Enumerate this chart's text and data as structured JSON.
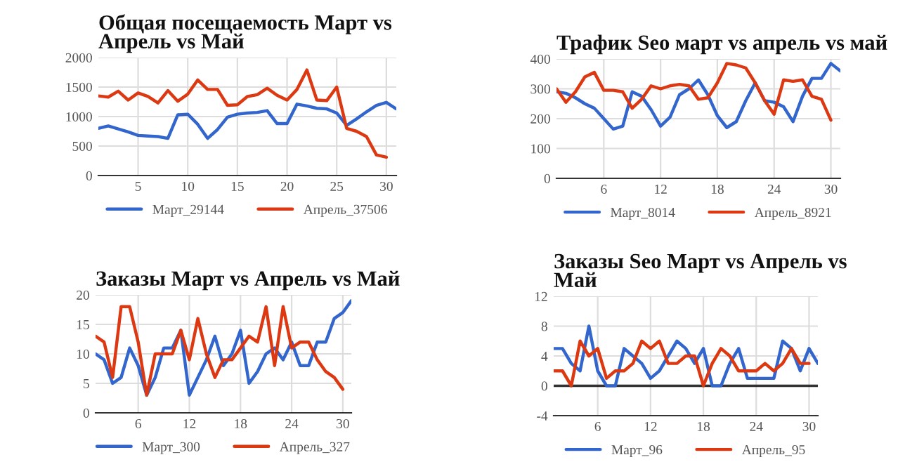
{
  "chart_data": [
    {
      "type": "line",
      "title": "Общая посещаемость Март vs\nАпрель vs Май",
      "x": [
        1,
        2,
        3,
        4,
        5,
        6,
        7,
        8,
        9,
        10,
        11,
        12,
        13,
        14,
        15,
        16,
        17,
        18,
        19,
        20,
        21,
        22,
        23,
        24,
        25,
        26,
        27,
        28,
        29,
        30,
        31
      ],
      "xlim": [
        1,
        31
      ],
      "xticks": [
        5,
        10,
        15,
        20,
        25,
        30
      ],
      "ylim": [
        0,
        2000
      ],
      "yticks": [
        0,
        500,
        1000,
        1500,
        2000
      ],
      "grid": true,
      "legend": "bottom",
      "series": [
        {
          "name": "Март_29144",
          "color": "#3366cc",
          "values": [
            800,
            840,
            790,
            740,
            680,
            670,
            660,
            630,
            1030,
            1040,
            870,
            630,
            780,
            990,
            1040,
            1060,
            1070,
            1100,
            880,
            880,
            1210,
            1180,
            1140,
            1130,
            1060,
            850,
            960,
            1080,
            1190,
            1240,
            1130
          ]
        },
        {
          "name": "Апрель_37506",
          "color": "#dc3912",
          "values": [
            1350,
            1330,
            1430,
            1280,
            1400,
            1340,
            1230,
            1440,
            1260,
            1380,
            1620,
            1460,
            1460,
            1190,
            1200,
            1340,
            1370,
            1480,
            1360,
            1280,
            1460,
            1790,
            1280,
            1270,
            1500,
            800,
            750,
            660,
            350,
            310,
            null
          ]
        }
      ]
    },
    {
      "type": "line",
      "title": "Трафик Seo март vs апрель vs май",
      "x": [
        1,
        2,
        3,
        4,
        5,
        6,
        7,
        8,
        9,
        10,
        11,
        12,
        13,
        14,
        15,
        16,
        17,
        18,
        19,
        20,
        21,
        22,
        23,
        24,
        25,
        26,
        27,
        28,
        29,
        30,
        31
      ],
      "xlim": [
        1,
        31
      ],
      "xticks": [
        6,
        12,
        18,
        24,
        30
      ],
      "ylim": [
        0,
        400
      ],
      "yticks": [
        0,
        100,
        200,
        300,
        400
      ],
      "grid": true,
      "legend": "bottom",
      "series": [
        {
          "name": "Март_8014",
          "color": "#3366cc",
          "values": [
            290,
            285,
            270,
            250,
            235,
            200,
            165,
            175,
            290,
            275,
            230,
            175,
            205,
            280,
            300,
            330,
            280,
            210,
            170,
            190,
            260,
            320,
            260,
            255,
            240,
            190,
            275,
            335,
            335,
            385,
            360
          ]
        },
        {
          "name": "Апрель_8921",
          "color": "#dc3912",
          "values": [
            300,
            255,
            290,
            340,
            355,
            295,
            295,
            290,
            235,
            265,
            310,
            300,
            310,
            315,
            310,
            265,
            270,
            320,
            385,
            380,
            370,
            320,
            260,
            215,
            330,
            325,
            330,
            275,
            265,
            195,
            null
          ]
        }
      ]
    },
    {
      "type": "line",
      "title": "Заказы Март vs Апрель vs Май",
      "x": [
        1,
        2,
        3,
        4,
        5,
        6,
        7,
        8,
        9,
        10,
        11,
        12,
        13,
        14,
        15,
        16,
        17,
        18,
        19,
        20,
        21,
        22,
        23,
        24,
        25,
        26,
        27,
        28,
        29,
        30,
        31
      ],
      "xlim": [
        1,
        31
      ],
      "xticks": [
        6,
        12,
        18,
        24,
        30
      ],
      "ylim": [
        0,
        20
      ],
      "yticks": [
        0,
        5,
        10,
        15,
        20
      ],
      "grid": true,
      "legend": "bottom",
      "series": [
        {
          "name": "Март_300",
          "color": "#3366cc",
          "values": [
            10,
            9,
            5,
            6,
            11,
            8,
            3,
            6,
            11,
            11,
            14,
            3,
            6,
            9,
            13,
            8,
            10,
            14,
            5,
            7,
            10,
            11,
            9,
            12,
            8,
            8,
            12,
            12,
            16,
            17,
            19
          ]
        },
        {
          "name": "Апрель_327",
          "color": "#dc3912",
          "values": [
            13,
            12,
            6,
            18,
            18,
            12,
            3,
            10,
            10,
            10,
            14,
            9,
            16,
            10,
            6,
            9,
            9,
            11,
            13,
            12,
            18,
            8,
            18,
            11,
            12,
            12,
            9,
            7,
            6,
            4,
            null
          ]
        }
      ]
    },
    {
      "type": "line",
      "title": "Заказы Seo Март vs Апрель vs\nМай",
      "x": [
        1,
        2,
        3,
        4,
        5,
        6,
        7,
        8,
        9,
        10,
        11,
        12,
        13,
        14,
        15,
        16,
        17,
        18,
        19,
        20,
        21,
        22,
        23,
        24,
        25,
        26,
        27,
        28,
        29,
        30,
        31
      ],
      "xlim": [
        1,
        31
      ],
      "xticks": [
        6,
        12,
        18,
        24,
        30
      ],
      "ylim": [
        -4,
        12
      ],
      "yticks": [
        -4,
        0,
        4,
        8,
        12
      ],
      "grid": true,
      "legend": "bottom",
      "ref_lines": [
        {
          "axis": "y",
          "value": 0,
          "color": "#333333"
        }
      ],
      "series": [
        {
          "name": "Март_96",
          "color": "#3366cc",
          "values": [
            5,
            5,
            3,
            2,
            8,
            2,
            0,
            0,
            5,
            4,
            3,
            1,
            2,
            4,
            6,
            5,
            3,
            5,
            0,
            0,
            3,
            5,
            1,
            1,
            1,
            1,
            6,
            5,
            2,
            5,
            3
          ]
        },
        {
          "name": "Апрель_95",
          "color": "#dc3912",
          "values": [
            2,
            2,
            0,
            6,
            4,
            5,
            1,
            2,
            2,
            3,
            6,
            5,
            6,
            3,
            3,
            4,
            4,
            0,
            3,
            5,
            4,
            2,
            2,
            2,
            3,
            2,
            3,
            5,
            3,
            3,
            null
          ]
        }
      ]
    }
  ]
}
